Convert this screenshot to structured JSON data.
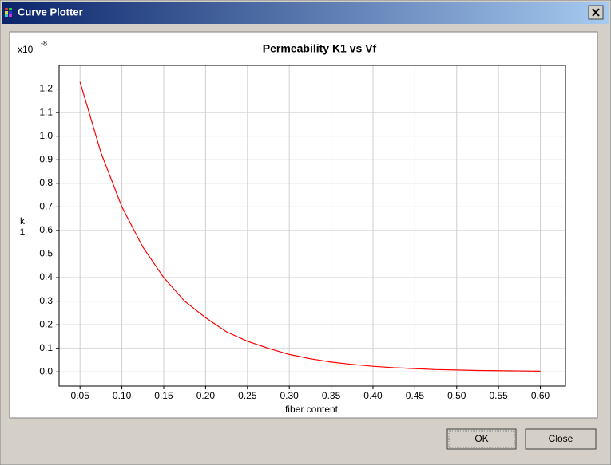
{
  "window": {
    "title": "Curve Plotter"
  },
  "buttons": [
    "OK",
    "Close"
  ],
  "chart_data": {
    "type": "line",
    "title": "Permeability K1 vs Vf",
    "x_label": "fiber content",
    "y_label": "k",
    "y_label_subscript": "1",
    "y_scale_label": "x10",
    "y_scale_exponent": "-8",
    "x": [
      0.05,
      0.075,
      0.1,
      0.125,
      0.15,
      0.175,
      0.2,
      0.225,
      0.25,
      0.275,
      0.3,
      0.325,
      0.35,
      0.375,
      0.4,
      0.425,
      0.45,
      0.475,
      0.5,
      0.525,
      0.55,
      0.575,
      0.6
    ],
    "values": [
      1.23,
      0.93,
      0.7,
      0.53,
      0.4,
      0.3,
      0.23,
      0.17,
      0.13,
      0.1,
      0.074,
      0.056,
      0.042,
      0.032,
      0.024,
      0.018,
      0.014,
      0.01,
      0.008,
      0.006,
      0.005,
      0.004,
      0.003
    ],
    "color": "#ff0000",
    "xlim": [
      0.025,
      0.63
    ],
    "ylim": [
      -0.06,
      1.3
    ],
    "xticks": [
      0.05,
      {
        "value": 0.1,
        "label": "0.10"
      },
      0.15,
      {
        "value": 0.2,
        "label": "0.20"
      },
      0.25,
      {
        "value": 0.3,
        "label": "0.30"
      },
      0.35,
      {
        "value": 0.4,
        "label": "0.40"
      },
      0.45,
      {
        "value": 0.5,
        "label": "0.50"
      },
      0.55,
      {
        "value": 0.6,
        "label": "0.60"
      }
    ],
    "yticks": [
      {
        "value": 0,
        "label": "0.0"
      },
      0.1,
      0.2,
      0.3,
      0.4,
      0.5,
      0.6,
      0.7,
      0.8,
      0.9,
      {
        "value": 1,
        "label": "1.0"
      },
      1.1,
      1.2
    ],
    "grid": true
  }
}
